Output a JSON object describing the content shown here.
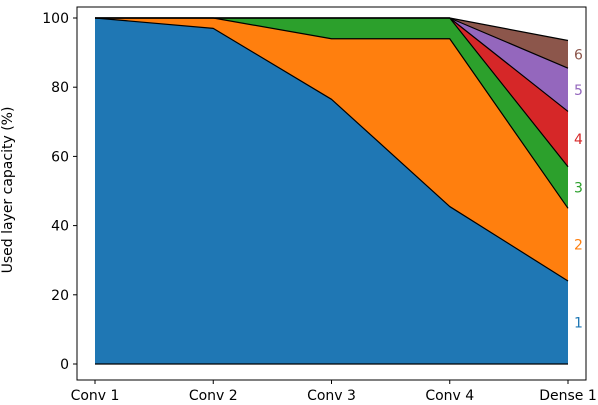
{
  "chart_data": {
    "type": "area",
    "stacked": true,
    "title": "",
    "xlabel": "",
    "ylabel": "Used layer capacity (%)",
    "categories": [
      "Conv 1",
      "Conv 2",
      "Conv 3",
      "Conv 4",
      "Dense 1"
    ],
    "ylim": [
      0,
      100
    ],
    "yticks": [
      0,
      20,
      40,
      60,
      80,
      100
    ],
    "grid": false,
    "legend": "none",
    "series": [
      {
        "name": "1",
        "color": "#1f77b4",
        "values": [
          100,
          97,
          76.5,
          45.5,
          24
        ]
      },
      {
        "name": "2",
        "color": "#ff7f0e",
        "values": [
          0,
          3,
          17.5,
          48.5,
          21
        ]
      },
      {
        "name": "3",
        "color": "#2ca02c",
        "values": [
          0,
          0,
          6,
          6,
          12
        ]
      },
      {
        "name": "4",
        "color": "#d62728",
        "values": [
          0,
          0,
          0,
          0,
          16
        ]
      },
      {
        "name": "5",
        "color": "#9467bd",
        "values": [
          0,
          0,
          0,
          0,
          12.5
        ]
      },
      {
        "name": "6",
        "color": "#8c564b",
        "values": [
          0,
          0,
          0,
          0,
          8
        ]
      }
    ]
  }
}
